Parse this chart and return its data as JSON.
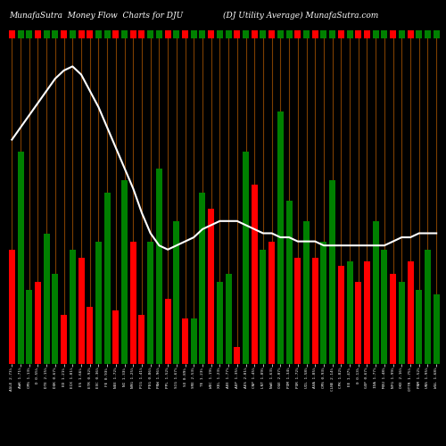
{
  "title_left": "MunafaSutra  Money Flow  Charts for DJU",
  "title_right": "(DJ Utility Average) MunafaSutra.com",
  "background_color": "#000000",
  "line_color": "#ffffff",
  "vertical_line_color": "#8B4500",
  "bar_colors": [
    "red",
    "green",
    "green",
    "red",
    "green",
    "green",
    "red",
    "green",
    "red",
    "red",
    "green",
    "green",
    "red",
    "green",
    "red",
    "red",
    "green",
    "green",
    "red",
    "green",
    "red",
    "green",
    "green",
    "red",
    "green",
    "green",
    "red",
    "green",
    "red",
    "green",
    "red",
    "green",
    "green",
    "red",
    "green",
    "red",
    "green",
    "green",
    "red",
    "green",
    "red",
    "red",
    "green",
    "green",
    "red",
    "green",
    "red",
    "green",
    "green",
    "green"
  ],
  "bar_heights": [
    28,
    52,
    18,
    20,
    32,
    22,
    12,
    28,
    26,
    14,
    30,
    42,
    13,
    45,
    30,
    12,
    30,
    48,
    16,
    35,
    11,
    11,
    42,
    38,
    20,
    22,
    4,
    52,
    44,
    28,
    30,
    62,
    40,
    26,
    35,
    26,
    30,
    45,
    24,
    25,
    20,
    25,
    35,
    28,
    22,
    20,
    25,
    18,
    28,
    17
  ],
  "line_values": [
    55,
    58,
    61,
    64,
    67,
    70,
    72,
    73,
    71,
    67,
    63,
    58,
    53,
    48,
    43,
    37,
    32,
    29,
    28,
    29,
    30,
    31,
    33,
    34,
    35,
    35,
    35,
    34,
    33,
    32,
    32,
    31,
    31,
    30,
    30,
    30,
    29,
    29,
    29,
    29,
    29,
    29,
    29,
    29,
    30,
    31,
    31,
    32,
    32,
    32
  ],
  "x_labels": [
    "AGLE 2.73%",
    "AWK 1.71%",
    "CMS 1.13%",
    "D 0.55%",
    "DTE 2.15%",
    "DUK 0.67%",
    "ED 1.21%",
    "EIX 1.81%",
    "ES 1.66%",
    "ETR 0.92%",
    "EXC 0.36%",
    "FE 0.93%",
    "NEE 1.72%",
    "NI 1.33%",
    "NRG 1.25%",
    "PCG 1.41%",
    "PEG 0.86%",
    "PNW 1.96%",
    "PPL 1.52%",
    "SCG 1.67%",
    "SO 0.89%",
    "SRE 2.53%",
    "TE 1.23%",
    "WEC 1.19%",
    "XEL 1.23%",
    "AEE 1.77%",
    "AEP 1.35%",
    "AES 2.01%",
    "CNP 1.45%",
    "LNT 1.89%",
    "NWE 1.63%",
    "OGE 2.07%",
    "POM 1.34%",
    "POR 1.72%",
    "UIL 1.58%",
    "AVA 1.85%",
    "CMS 0.93%",
    "CLNE 2.14%",
    "CPK 1.82%",
    "EE 1.47%",
    "0 0.13%",
    "GXP 0.67%",
    "IDA 1.77%",
    "MDU 1.48%",
    "NFG 1.99%",
    "OKE 2.16%",
    "OTTR 1.75%",
    "PNM 1.52%",
    "UNS 1.95%",
    "WGL 1.68%"
  ],
  "n_bars": 50,
  "top_strip_colors": [
    "red",
    "green",
    "green",
    "red",
    "green",
    "green",
    "red",
    "green",
    "red",
    "red",
    "green",
    "green",
    "red",
    "green",
    "red",
    "red",
    "green",
    "green",
    "red",
    "green",
    "red",
    "green",
    "green",
    "red",
    "green",
    "green",
    "red",
    "green",
    "red",
    "green",
    "red",
    "green",
    "green",
    "red",
    "green",
    "red",
    "green",
    "green",
    "red",
    "green",
    "red",
    "red",
    "green",
    "green",
    "red",
    "green",
    "red",
    "green",
    "green",
    "green"
  ]
}
